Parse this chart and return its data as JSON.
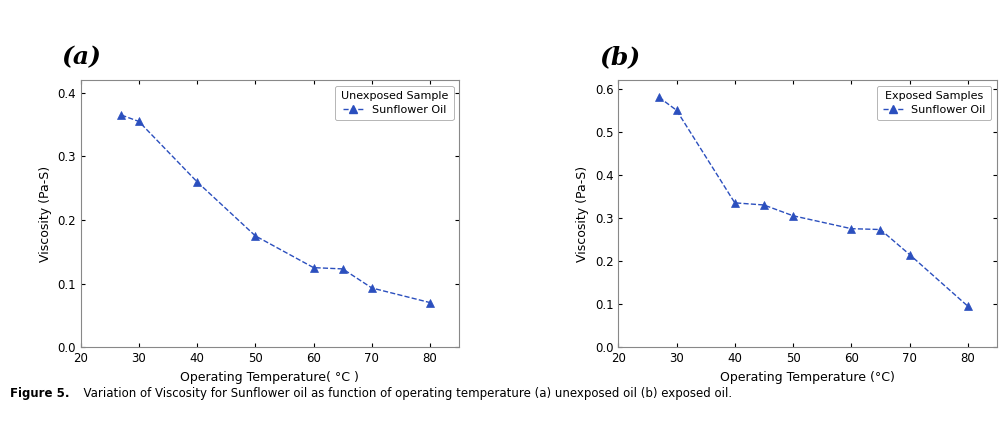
{
  "panel_a": {
    "label": "(a)",
    "x": [
      27,
      30,
      40,
      50,
      60,
      65,
      70,
      80
    ],
    "y": [
      0.365,
      0.355,
      0.26,
      0.175,
      0.125,
      0.123,
      0.093,
      0.07
    ],
    "xlim": [
      20,
      85
    ],
    "ylim": [
      0.0,
      0.42
    ],
    "yticks": [
      0.0,
      0.1,
      0.2,
      0.3,
      0.4
    ],
    "xticks": [
      20,
      30,
      40,
      50,
      60,
      70,
      80
    ],
    "xlabel": "Operating Temperature( °C )",
    "ylabel": "Viscosity (Pa-S)",
    "legend_title": "Unexposed Sample",
    "legend_label": "Sunflower Oil",
    "line_color": "#2b4fbe",
    "marker": "^",
    "marker_color": "#2b4fbe"
  },
  "panel_b": {
    "label": "(b)",
    "x": [
      27,
      30,
      40,
      45,
      50,
      60,
      65,
      70,
      80
    ],
    "y": [
      0.58,
      0.55,
      0.335,
      0.33,
      0.305,
      0.275,
      0.273,
      0.215,
      0.095
    ],
    "xlim": [
      20,
      85
    ],
    "ylim": [
      0.0,
      0.62
    ],
    "yticks": [
      0.0,
      0.1,
      0.2,
      0.3,
      0.4,
      0.5,
      0.6
    ],
    "xticks": [
      20,
      30,
      40,
      50,
      60,
      70,
      80
    ],
    "xlabel": "Operating Temperature (°C)",
    "ylabel": "Viscosity (Pa-S)",
    "legend_title": "Exposed Samples",
    "legend_label": "Sunflower Oil",
    "line_color": "#2b4fbe",
    "marker": "^",
    "marker_color": "#2b4fbe"
  },
  "caption_bold": "Figure 5.",
  "caption_normal": "  Variation of Viscosity for Sunflower oil as function of operating temperature (a) unexposed oil (b) exposed oil.",
  "background_color": "#ffffff",
  "figure_background": "#ffffff",
  "line_color": "#2b4fbe"
}
